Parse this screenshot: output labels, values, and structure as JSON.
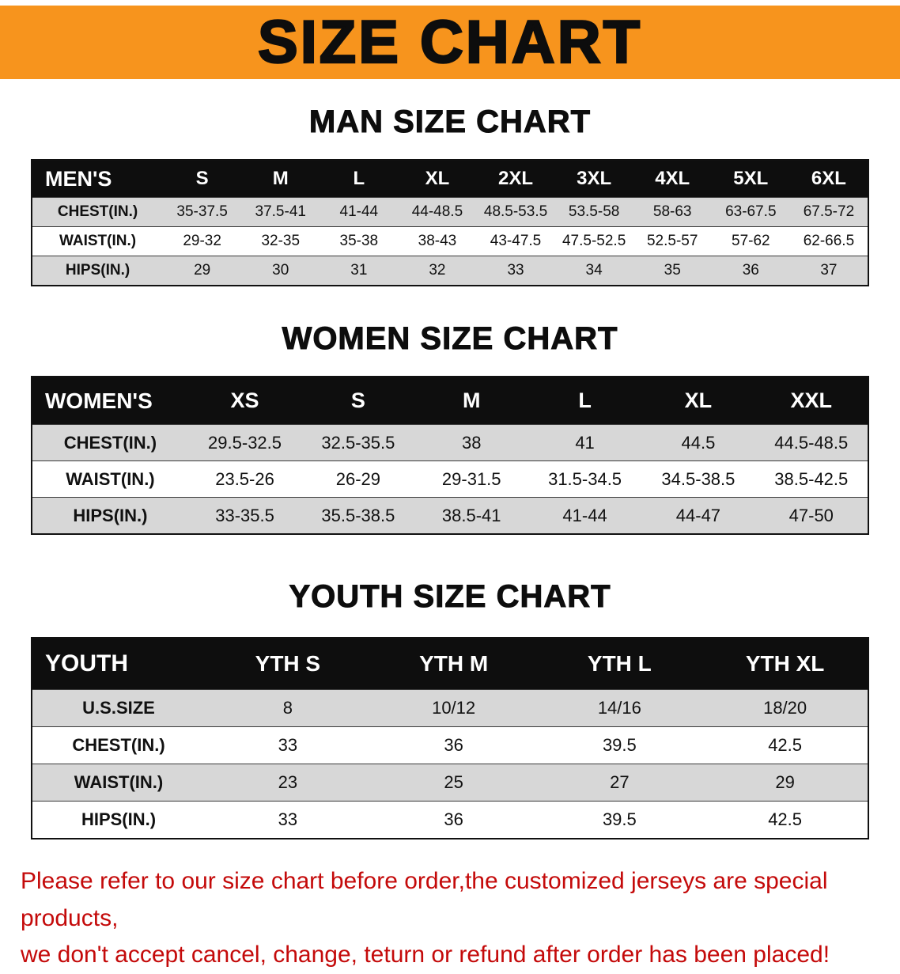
{
  "banner": {
    "title": "SIZE CHART",
    "bg_color": "#f7941d",
    "text_color": "#0d0d0d"
  },
  "colors": {
    "table_header_bg": "#0e0e0e",
    "row_shade": "#d7d7d7",
    "notice_red": "#c40a0a"
  },
  "sections": [
    {
      "heading": "MAN SIZE CHART",
      "table": {
        "header": [
          "MEN'S",
          "S",
          "M",
          "L",
          "XL",
          "2XL",
          "3XL",
          "4XL",
          "5XL",
          "6XL"
        ],
        "rows": [
          [
            "CHEST(IN.)",
            "35-37.5",
            "37.5-41",
            "41-44",
            "44-48.5",
            "48.5-53.5",
            "53.5-58",
            "58-63",
            "63-67.5",
            "67.5-72"
          ],
          [
            "WAIST(IN.)",
            "29-32",
            "32-35",
            "35-38",
            "38-43",
            "43-47.5",
            "47.5-52.5",
            "52.5-57",
            "57-62",
            "62-66.5"
          ],
          [
            "HIPS(IN.)",
            "29",
            "30",
            "31",
            "32",
            "33",
            "34",
            "35",
            "36",
            "37"
          ]
        ]
      }
    },
    {
      "heading": "WOMEN SIZE CHART",
      "table": {
        "header": [
          "WOMEN'S",
          "XS",
          "S",
          "M",
          "L",
          "XL",
          "XXL"
        ],
        "rows": [
          [
            "CHEST(IN.)",
            "29.5-32.5",
            "32.5-35.5",
            "38",
            "41",
            "44.5",
            "44.5-48.5"
          ],
          [
            "WAIST(IN.)",
            "23.5-26",
            "26-29",
            "29-31.5",
            "31.5-34.5",
            "34.5-38.5",
            "38.5-42.5"
          ],
          [
            "HIPS(IN.)",
            "33-35.5",
            "35.5-38.5",
            "38.5-41",
            "41-44",
            "44-47",
            "47-50"
          ]
        ]
      }
    },
    {
      "heading": "YOUTH SIZE CHART",
      "table": {
        "header": [
          "YOUTH",
          "YTH S",
          "YTH M",
          "YTH L",
          "YTH XL"
        ],
        "rows": [
          [
            "U.S.SIZE",
            "8",
            "10/12",
            "14/16",
            "18/20"
          ],
          [
            "CHEST(IN.)",
            "33",
            "36",
            "39.5",
            "42.5"
          ],
          [
            "WAIST(IN.)",
            "23",
            "25",
            "27",
            "29"
          ],
          [
            "HIPS(IN.)",
            "33",
            "36",
            "39.5",
            "42.5"
          ]
        ]
      }
    }
  ],
  "footer": {
    "line1": "Please refer to our size chart before order,the customized jerseys are special products,",
    "line2": "we don't accept cancel, change, teturn or refund after order has been placed!"
  }
}
